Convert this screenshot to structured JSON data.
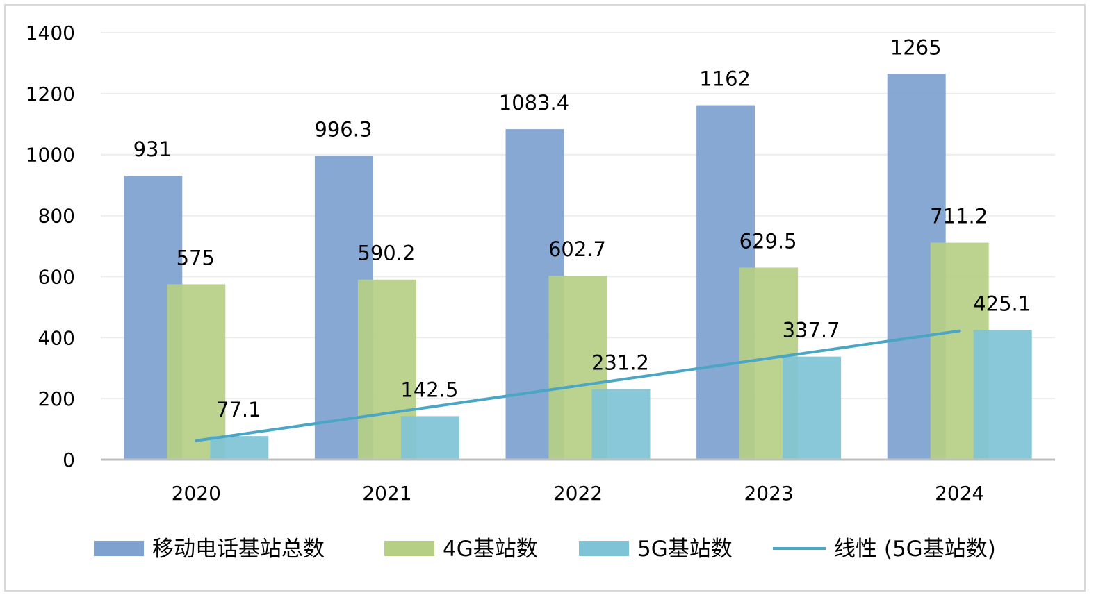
{
  "chart_data": {
    "type": "bar",
    "categories": [
      "2020",
      "2021",
      "2022",
      "2023",
      "2024"
    ],
    "series": [
      {
        "name": "移动电话基站总数",
        "color": "#7ea1d0",
        "values": [
          931,
          996.3,
          1083.4,
          1162,
          1265
        ],
        "labels": [
          "931",
          "996.3",
          "1083.4",
          "1162",
          "1265"
        ]
      },
      {
        "name": "4G基站数",
        "color": "#b5cf85",
        "values": [
          575,
          590.2,
          602.7,
          629.5,
          711.2
        ],
        "labels": [
          "575",
          "590.2",
          "602.7",
          "629.5",
          "711.2"
        ]
      },
      {
        "name": "5G基站数",
        "color": "#7fc3d6",
        "values": [
          77.1,
          142.5,
          231.2,
          337.7,
          425.1
        ],
        "labels": [
          "77.1",
          "142.5",
          "231.2",
          "337.7",
          "425.1"
        ]
      }
    ],
    "trendline": {
      "name": "线性 (5G基站数)",
      "color": "#4aa6c4",
      "of_series": "5G基站数",
      "start": 62,
      "end": 422
    },
    "yticks": [
      "0",
      "200",
      "400",
      "600",
      "800",
      "1000",
      "1200",
      "1400"
    ],
    "ylim": [
      0,
      1400
    ],
    "grid": true,
    "legend_position": "bottom"
  }
}
